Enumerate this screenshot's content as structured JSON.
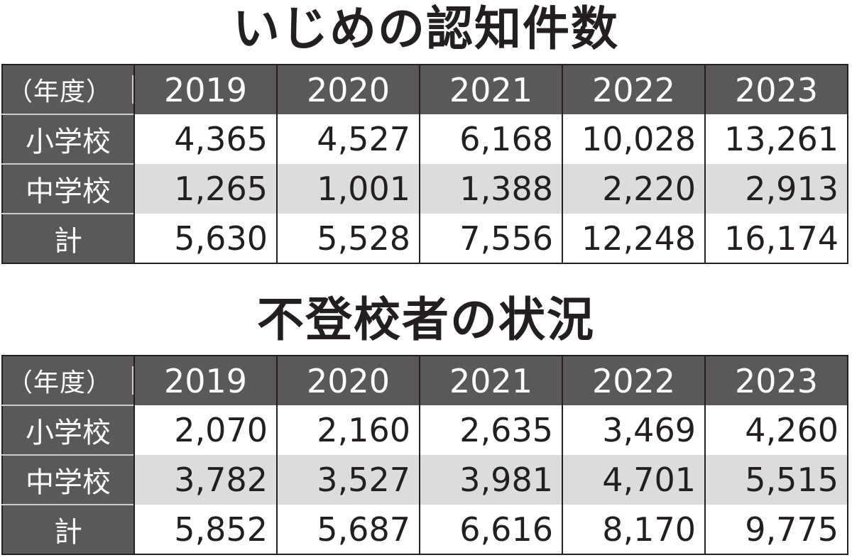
{
  "chart_data": [
    {
      "type": "table",
      "title": "いじめの認知件数",
      "corner_label": "（年度）",
      "categories": [
        "2019",
        "2020",
        "2021",
        "2022",
        "2023"
      ],
      "rows": [
        {
          "label": "小学校",
          "values": [
            "4,365",
            "4,527",
            "6,168",
            "10,028",
            "13,261"
          ]
        },
        {
          "label": "中学校",
          "values": [
            "1,265",
            "1,001",
            "1,388",
            "2,220",
            "2,913"
          ]
        },
        {
          "label": "計",
          "values": [
            "5,630",
            "5,528",
            "7,556",
            "12,248",
            "16,174"
          ]
        }
      ]
    },
    {
      "type": "table",
      "title": "不登校者の状況",
      "corner_label": "（年度）",
      "categories": [
        "2019",
        "2020",
        "2021",
        "2022",
        "2023"
      ],
      "rows": [
        {
          "label": "小学校",
          "values": [
            "2,070",
            "2,160",
            "2,635",
            "3,469",
            "4,260"
          ]
        },
        {
          "label": "中学校",
          "values": [
            "3,782",
            "3,527",
            "3,981",
            "4,701",
            "5,515"
          ]
        },
        {
          "label": "計",
          "values": [
            "5,852",
            "5,687",
            "6,616",
            "8,170",
            "9,775"
          ]
        }
      ]
    }
  ],
  "colors": {
    "header_bg": "#5b5859",
    "header_text": "#ffffff",
    "shaded_row": "#dcdcdc",
    "border": "#231f20",
    "text": "#231f20"
  }
}
